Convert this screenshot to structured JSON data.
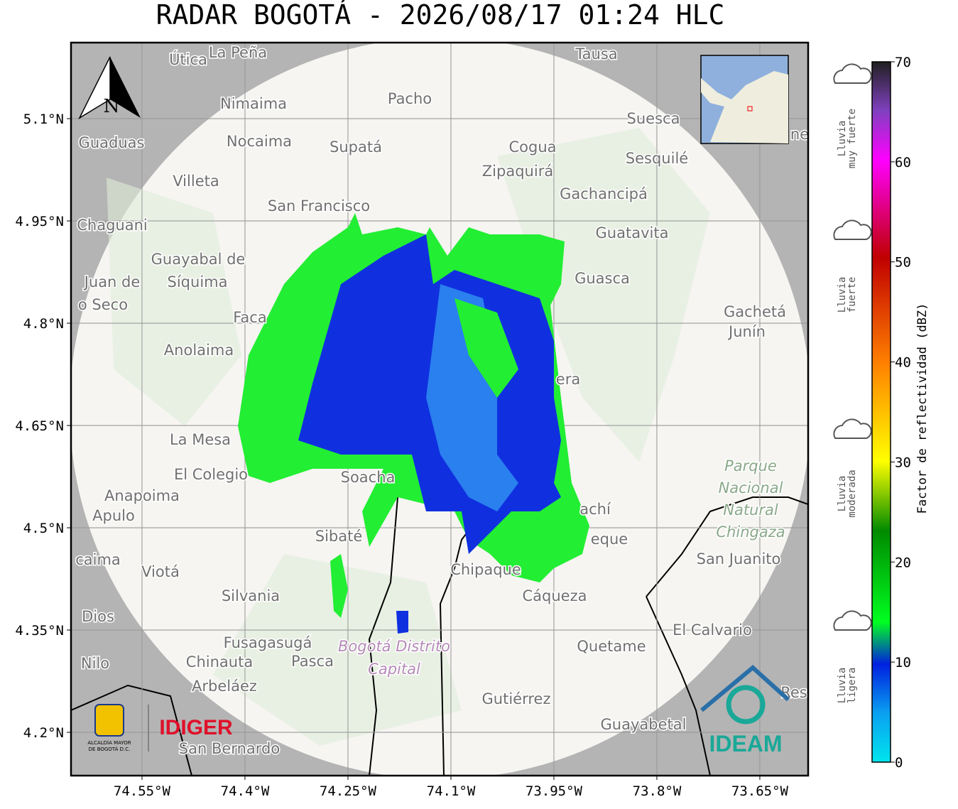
{
  "title": "RADAR BOGOTÁ - 2026/08/17 01:24 HLC",
  "map": {
    "xlim": [
      -74.6534,
      -73.5796
    ],
    "ylim": [
      4.1365,
      5.2115
    ],
    "xticks": [
      {
        "value": -74.55,
        "label": "74.55°W"
      },
      {
        "value": -74.4,
        "label": "74.4°W"
      },
      {
        "value": -74.25,
        "label": "74.25°W"
      },
      {
        "value": -74.1,
        "label": "74.1°W"
      },
      {
        "value": -73.95,
        "label": "73.95°W"
      },
      {
        "value": -73.8,
        "label": "73.8°W"
      },
      {
        "value": -73.65,
        "label": "73.65°W"
      }
    ],
    "yticks": [
      {
        "value": 5.1,
        "label": "5.1°N"
      },
      {
        "value": 4.95,
        "label": "4.95°N"
      },
      {
        "value": 4.8,
        "label": "4.8°N"
      },
      {
        "value": 4.65,
        "label": "4.65°N"
      },
      {
        "value": 4.5,
        "label": "4.5°N"
      },
      {
        "value": 4.35,
        "label": "4.35°N"
      },
      {
        "value": 4.2,
        "label": "4.2°N"
      }
    ],
    "grid": true,
    "north_label": "N",
    "places": [
      "Útica",
      "La Peña",
      "Tausa",
      "Pacho",
      "Nimaima",
      "Guaduas",
      "Nocaima",
      "Supatá",
      "Cogua",
      "Suesca",
      "Sesquilé",
      "Zipaquirá",
      "Villeta",
      "Gachancipá",
      "San Francisco",
      "Chaguani",
      "Guatavita",
      "Guayabal de",
      "Síquima",
      "Juan de",
      "o Seco",
      "Guasca",
      "Faca",
      "Gachetá",
      "Junín",
      "Anolaima",
      "era",
      "La Mesa",
      "El Colegio",
      "Soacha",
      "Anapoima",
      "Apulo",
      "achí",
      "eque",
      "Sibaté",
      "San Juanito",
      "caima",
      "Viotá",
      "Chipaque",
      "Silvania",
      "Cáqueza",
      "Dios",
      "El Calvario",
      "Fusagasugá",
      "Quetame",
      "Nilo",
      "Chinauta",
      "Pasca",
      "Arbeláez",
      "Gutiérrez",
      "Guayabetal",
      "San Bernardo",
      "Res",
      "ne"
    ],
    "park": [
      "Parque",
      "Nacional",
      "Natural",
      "Chingaza"
    ],
    "district": [
      "Bogotá Distrito",
      "Capital"
    ]
  },
  "logos": {
    "alcaldia": [
      "ALCALDÍA MAYOR",
      "DE BOGOTÁ D.C."
    ],
    "idiger": "IDIGER",
    "ideam": "IDEAM"
  },
  "colorbar": {
    "lim": [
      0,
      70
    ],
    "ticks": [
      0,
      10,
      20,
      30,
      40,
      50,
      60,
      70
    ],
    "label": "Factor de reflectividad (dBZ)",
    "categories": [
      [
        "Lluvia",
        "muy fuerte"
      ],
      [
        "Lluvia",
        "fuerte"
      ],
      [
        "Lluvia",
        "moderada"
      ],
      [
        "Lluvia",
        "ligera"
      ]
    ]
  }
}
